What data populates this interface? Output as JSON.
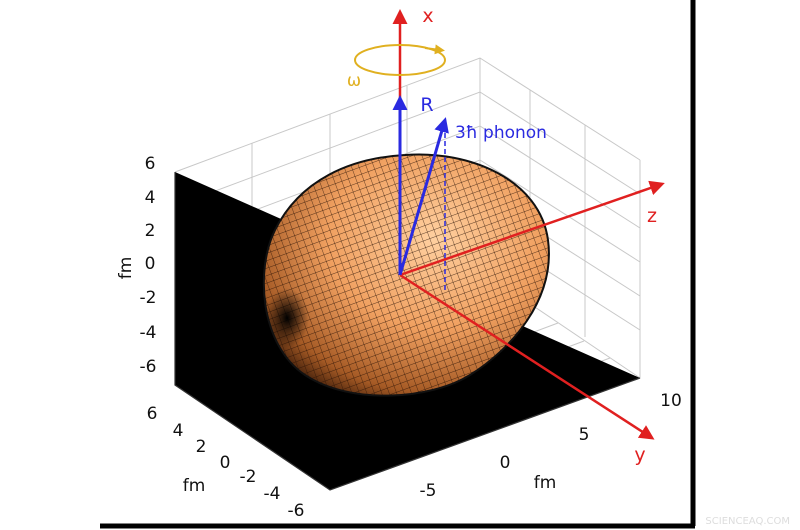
{
  "axes": {
    "x_label": "x",
    "y_label": "y",
    "z_label": "z",
    "vertical": {
      "unit": "fm",
      "ticks": [
        "6",
        "4",
        "2",
        "0",
        "-2",
        "-4",
        "-6"
      ]
    },
    "depth": {
      "unit": "fm",
      "ticks": [
        "6",
        "4",
        "2",
        "0",
        "-2",
        "-4",
        "-6"
      ]
    },
    "horizontal": {
      "unit": "fm",
      "ticks": [
        "-5",
        "0",
        "5",
        "10"
      ]
    }
  },
  "annotations": {
    "rotation": "ω",
    "vector_r": "R",
    "phonon": "3ħ phonon"
  },
  "watermark": "SCIENCEAQ.COM"
}
